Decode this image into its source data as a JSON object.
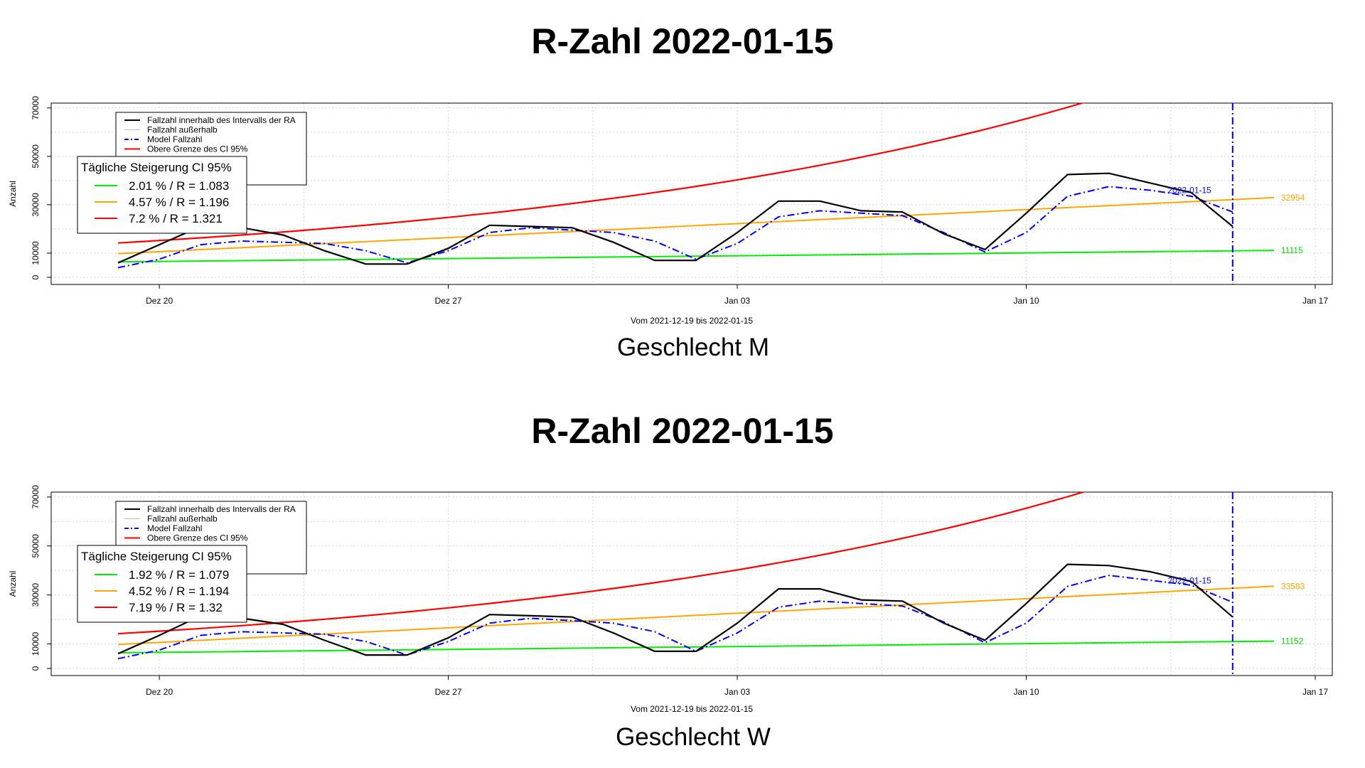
{
  "chart_data": [
    {
      "type": "line",
      "title": "R-Zahl 2022-01-15",
      "subtitle": "Geschlecht M",
      "xlabel": "Vom 2021-12-19 bis 2022-01-15",
      "ylabel": "Anzahl",
      "xlim": [
        "2021-12-18",
        "2022-01-17"
      ],
      "ylim": [
        0,
        72000
      ],
      "x_ticks": [
        "Dez 20",
        "Dez 27",
        "Jan 03",
        "Jan 10",
        "Jan 17"
      ],
      "x_tick_dates": [
        "2021-12-20",
        "2021-12-27",
        "2022-01-03",
        "2022-01-10",
        "2022-01-17"
      ],
      "y_ticks": [
        0,
        10000,
        30000,
        50000,
        70000
      ],
      "grid": true,
      "legend_main": {
        "position": "top-left",
        "entries": [
          "Fallzahl innerhalb des Intervalls der RA",
          "Fallzahl außerhalb",
          "Model Fallzahl",
          "Obere Grenze des CI 95%"
        ]
      },
      "legend_growth": {
        "title": "Tägliche Steigerung CI  95%",
        "entries": [
          "2.01 % / R = 1.083",
          "4.57 % / R = 1.196",
          "7.2 % / R = 1.321"
        ]
      },
      "vline_date": "2022-01-15",
      "vline_label": "2022-01-15",
      "end_labels": {
        "orange": "32954",
        "green": "11115"
      },
      "x": [
        "2021-12-19",
        "2021-12-20",
        "2021-12-21",
        "2021-12-22",
        "2021-12-23",
        "2021-12-24",
        "2021-12-25",
        "2021-12-26",
        "2021-12-27",
        "2021-12-28",
        "2021-12-29",
        "2021-12-30",
        "2021-12-31",
        "2022-01-01",
        "2022-01-02",
        "2022-01-03",
        "2022-01-04",
        "2022-01-05",
        "2022-01-06",
        "2022-01-07",
        "2022-01-08",
        "2022-01-09",
        "2022-01-10",
        "2022-01-11",
        "2022-01-12",
        "2022-01-13",
        "2022-01-14",
        "2022-01-15"
      ],
      "series": [
        {
          "name": "Fallzahl innerhalb des Intervalls der RA",
          "color": "#000000",
          "style": "solid",
          "values": [
            6000,
            13500,
            21000,
            20500,
            17500,
            11000,
            5500,
            5500,
            12000,
            21500,
            21000,
            20500,
            14500,
            7000,
            7000,
            18500,
            31500,
            31500,
            27500,
            27000,
            18000,
            11500,
            26500,
            42500,
            43000,
            39000,
            35000,
            21000
          ]
        },
        {
          "name": "Model Fallzahl",
          "color": "#0000ff",
          "style": "dashdot",
          "values": [
            4000,
            7500,
            13500,
            15000,
            14500,
            14000,
            11000,
            6000,
            11000,
            18500,
            20500,
            19500,
            18500,
            15000,
            7500,
            14000,
            25000,
            27500,
            26500,
            25500,
            18500,
            10500,
            18500,
            33500,
            37500,
            36000,
            33500,
            27000
          ]
        },
        {
          "name": "Obere Grenze des CI 95%",
          "color": "#ff0000",
          "start": 14200,
          "daily_factor": 1.072
        },
        {
          "name": "4.57 % / R = 1.196",
          "color": "#ffa500",
          "start": 9800,
          "end": 32954
        },
        {
          "name": "2.01 % / R = 1.083",
          "color": "#00ee00",
          "start": 6400,
          "end": 11115
        }
      ]
    },
    {
      "type": "line",
      "title": "R-Zahl 2022-01-15",
      "subtitle": "Geschlecht W",
      "xlabel": "Vom 2021-12-19 bis 2022-01-15",
      "ylabel": "Anzahl",
      "xlim": [
        "2021-12-18",
        "2022-01-17"
      ],
      "ylim": [
        0,
        72000
      ],
      "x_ticks": [
        "Dez 20",
        "Dez 27",
        "Jan 03",
        "Jan 10",
        "Jan 17"
      ],
      "x_tick_dates": [
        "2021-12-20",
        "2021-12-27",
        "2022-01-03",
        "2022-01-10",
        "2022-01-17"
      ],
      "y_ticks": [
        0,
        10000,
        30000,
        50000,
        70000
      ],
      "grid": true,
      "legend_main": {
        "position": "top-left",
        "entries": [
          "Fallzahl innerhalb des Intervalls der RA",
          "Fallzahl außerhalb",
          "Model Fallzahl",
          "Obere Grenze des CI 95%"
        ]
      },
      "legend_growth": {
        "title": "Tägliche Steigerung CI  95%",
        "entries": [
          "1.92 % / R = 1.079",
          "4.52 % / R = 1.194",
          "7.19 % / R = 1.32"
        ]
      },
      "vline_date": "2022-01-15",
      "vline_label": "2022-01-15",
      "end_labels": {
        "orange": "33583",
        "green": "11152"
      },
      "x": [
        "2021-12-19",
        "2021-12-20",
        "2021-12-21",
        "2021-12-22",
        "2021-12-23",
        "2021-12-24",
        "2021-12-25",
        "2021-12-26",
        "2021-12-27",
        "2021-12-28",
        "2021-12-29",
        "2021-12-30",
        "2021-12-31",
        "2022-01-01",
        "2022-01-02",
        "2022-01-03",
        "2022-01-04",
        "2022-01-05",
        "2022-01-06",
        "2022-01-07",
        "2022-01-08",
        "2022-01-09",
        "2022-01-10",
        "2022-01-11",
        "2022-01-12",
        "2022-01-13",
        "2022-01-14",
        "2022-01-15"
      ],
      "series": [
        {
          "name": "Fallzahl innerhalb des Intervalls der RA",
          "color": "#000000",
          "style": "solid",
          "values": [
            6000,
            13500,
            21500,
            20500,
            18000,
            11500,
            5500,
            5500,
            12500,
            22000,
            21500,
            21000,
            14500,
            7000,
            7000,
            18500,
            32500,
            32500,
            28000,
            27500,
            18500,
            11500,
            26500,
            42500,
            42000,
            39500,
            35500,
            21000
          ]
        },
        {
          "name": "Model Fallzahl",
          "color": "#0000ff",
          "style": "dashdot",
          "values": [
            4000,
            7500,
            13500,
            15000,
            14500,
            14000,
            11000,
            5500,
            11000,
            18500,
            20500,
            19500,
            18500,
            15000,
            7000,
            14500,
            25000,
            27500,
            26500,
            25500,
            19000,
            10500,
            18500,
            33500,
            38000,
            36000,
            34000,
            27000
          ]
        },
        {
          "name": "Obere Grenze des CI 95%",
          "color": "#ff0000",
          "start": 14200,
          "daily_factor": 1.0719
        },
        {
          "name": "4.52 % / R = 1.194",
          "color": "#ffa500",
          "start": 9800,
          "end": 33583
        },
        {
          "name": "1.92 % / R = 1.079",
          "color": "#00ee00",
          "start": 6400,
          "end": 11152
        }
      ]
    }
  ]
}
